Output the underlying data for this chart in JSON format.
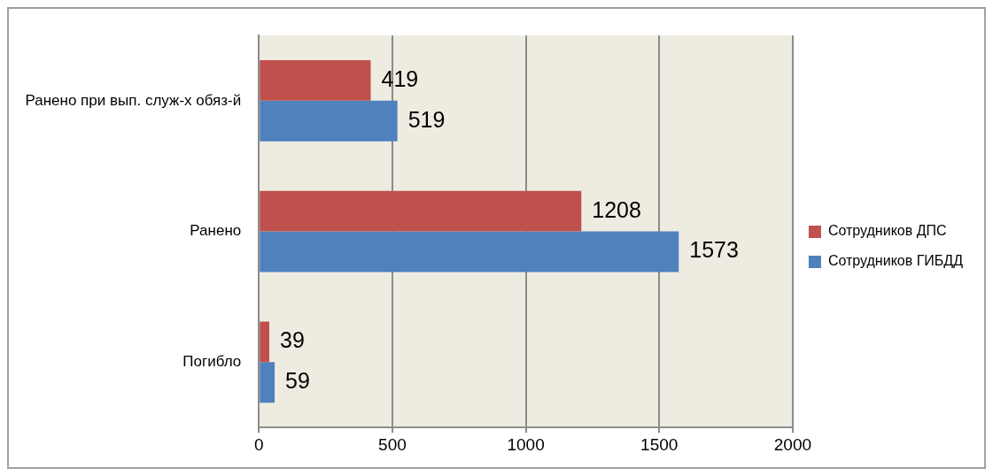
{
  "chart_data": {
    "type": "bar",
    "orientation": "horizontal",
    "categories": [
      "Ранено при вып. служ-х обяз-й",
      "Ранено",
      "Погибло"
    ],
    "series": [
      {
        "name": "Сотрудников ДПС",
        "color": "#c0504d",
        "values": [
          419,
          1208,
          39
        ]
      },
      {
        "name": "Сотрудников ГИБДД",
        "color": "#4f81bd",
        "values": [
          519,
          1573,
          59
        ]
      }
    ],
    "xlim": [
      0,
      2000
    ],
    "xticks": [
      0,
      500,
      1000,
      1500,
      2000
    ],
    "grid": "x",
    "legend": "right",
    "data_labels": true
  }
}
